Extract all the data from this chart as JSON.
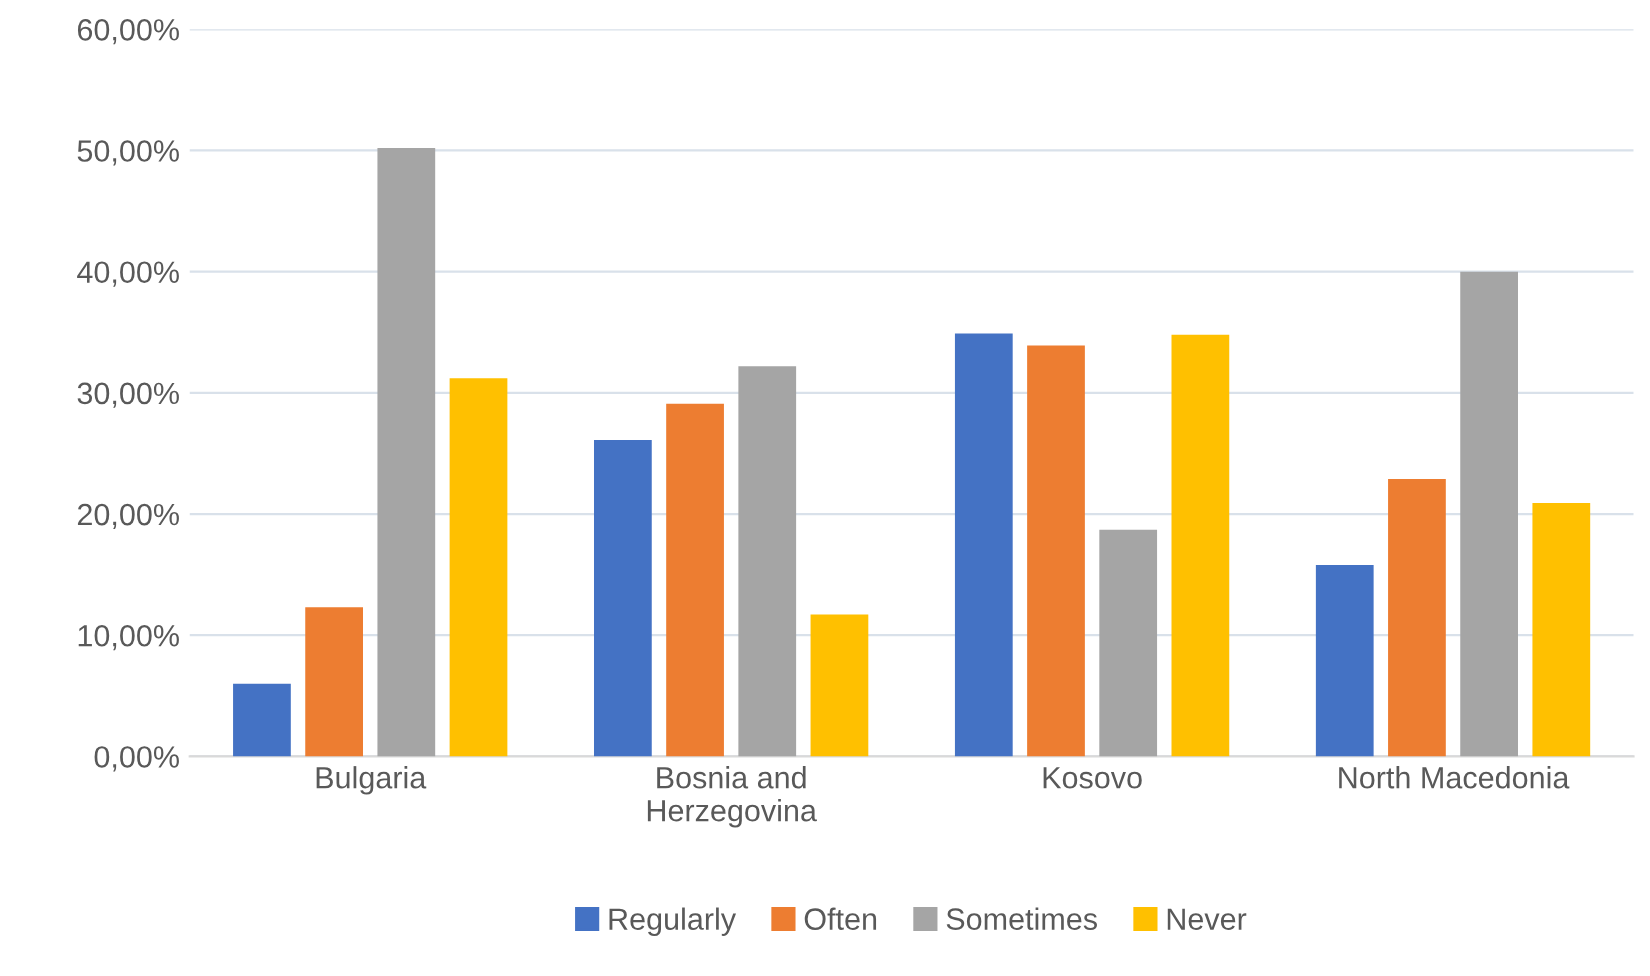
{
  "chart_data": {
    "type": "bar",
    "categories": [
      "Bulgaria",
      "Bosnia and\nHerzegovina",
      "Kosovo",
      "North Macedonia"
    ],
    "series": [
      {
        "name": "Regularly",
        "color": "#4472c4",
        "values": [
          6.0,
          26.1,
          34.9,
          15.8
        ]
      },
      {
        "name": "Often",
        "color": "#ed7d31",
        "values": [
          12.3,
          29.1,
          33.9,
          22.9
        ]
      },
      {
        "name": "Sometimes",
        "color": "#a5a5a5",
        "values": [
          50.2,
          32.2,
          18.7,
          40.0
        ]
      },
      {
        "name": "Never",
        "color": "#ffc000",
        "values": [
          31.2,
          11.7,
          34.8,
          20.9
        ]
      }
    ],
    "ylim": [
      0,
      60
    ],
    "yticks": [
      {
        "value": 0,
        "label": "0,00%"
      },
      {
        "value": 10,
        "label": "10,00%"
      },
      {
        "value": 20,
        "label": "20,00%"
      },
      {
        "value": 30,
        "label": "30,00%"
      },
      {
        "value": 40,
        "label": "40,00%"
      },
      {
        "value": 50,
        "label": "50,00%"
      },
      {
        "value": 60,
        "label": "60,00%"
      }
    ],
    "grid": "y",
    "legend": "bottom"
  }
}
